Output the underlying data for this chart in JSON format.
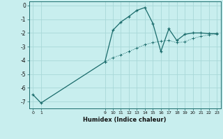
{
  "title": "",
  "xlabel": "Humidex (Indice chaleur)",
  "bg_color": "#c8eeee",
  "line_color": "#1a6b6b",
  "grid_color": "#a8d8d8",
  "x_ticks": [
    0,
    1,
    9,
    10,
    11,
    12,
    13,
    14,
    15,
    16,
    17,
    18,
    19,
    20,
    21,
    22,
    23
  ],
  "ylim": [
    -7.5,
    0.3
  ],
  "xlim": [
    -0.5,
    23.5
  ],
  "series1_x": [
    0,
    1,
    9,
    10,
    11,
    12,
    13,
    14,
    15,
    16,
    17,
    18,
    19,
    20,
    21,
    22,
    23
  ],
  "series1_y": [
    -6.5,
    -7.1,
    -4.1,
    -1.8,
    -1.2,
    -0.8,
    -0.35,
    -0.15,
    -1.3,
    -3.35,
    -1.7,
    -2.55,
    -2.1,
    -2.0,
    -2.0,
    -2.05,
    -2.05
  ],
  "series2_x": [
    9,
    10,
    11,
    12,
    13,
    14,
    15,
    16,
    17,
    18,
    19,
    20,
    21,
    22,
    23
  ],
  "series2_y": [
    -4.1,
    -3.8,
    -3.6,
    -3.35,
    -3.1,
    -2.85,
    -2.7,
    -2.6,
    -2.55,
    -2.7,
    -2.65,
    -2.4,
    -2.25,
    -2.15,
    -2.1
  ],
  "yticks": [
    0,
    -1,
    -2,
    -3,
    -4,
    -5,
    -6,
    -7
  ]
}
